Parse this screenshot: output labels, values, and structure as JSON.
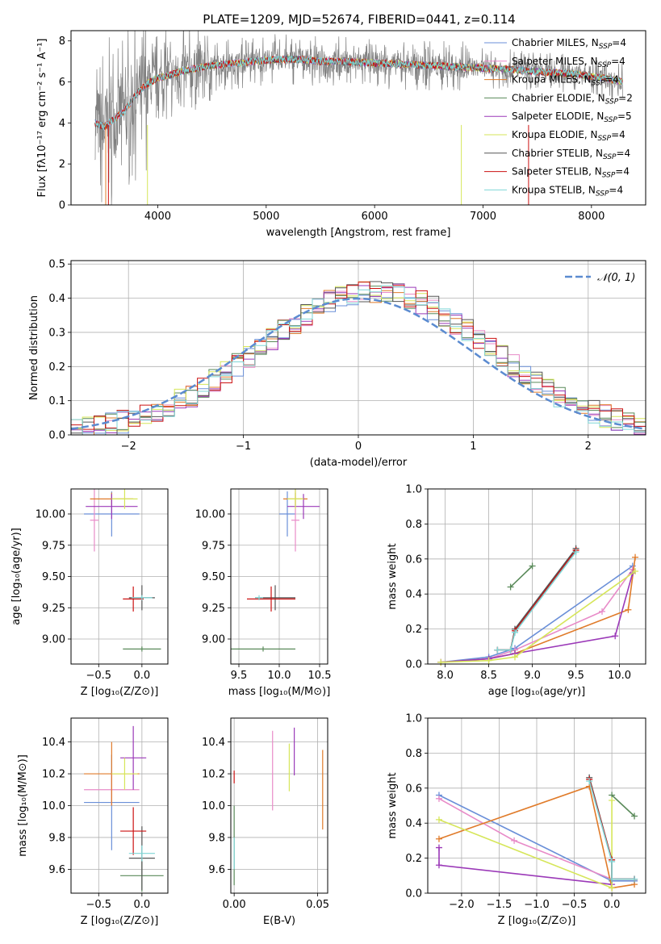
{
  "figure": {
    "title": "PLATE=1209, MJD=52674, FIBERID=0441, z=0.114"
  },
  "colors": {
    "chabrier_miles": "#6a8fd8",
    "salpeter_miles": "#e88bc8",
    "kroupa_miles": "#e07b2a",
    "chabrier_elodie": "#5a8a5a",
    "salpeter_elodie": "#9b39b8",
    "kroupa_elodie": "#d6e65a",
    "chabrier_stelib": "#555555",
    "salpeter_stelib": "#cc1111",
    "kroupa_stelib": "#7fd6d6",
    "gauss": "#5b8bd0"
  },
  "chart_data": [
    {
      "id": "spectrum",
      "type": "line",
      "xlabel": "wavelength [Angstrom, rest frame]",
      "ylabel": "Flux [fλ10⁻¹⁷ erg cm⁻² s⁻¹ A⁻¹]",
      "xlim": [
        3200,
        8500
      ],
      "ylim": [
        0,
        8.5
      ],
      "xticks": [
        "4000",
        "5000",
        "6000",
        "7000",
        "8000"
      ],
      "yticks": [
        "0",
        "2",
        "4",
        "6",
        "8"
      ],
      "legend": [
        "Chabrier MILES, NSSP=4",
        "Salpeter MILES, NSSP=4",
        "Kroupa MILES, NSSP=4",
        "Chabrier ELODIE, NSSP=2",
        "Salpeter ELODIE, NSSP=5",
        "Kroupa ELODIE, NSSP=4",
        "Chabrier STELIB, NSSP=4",
        "Salpeter STELIB, NSSP=4",
        "Kroupa STELIB, NSSP=4"
      ],
      "legend_position": "right",
      "data_points": {
        "x": [
          3420,
          3500,
          3600,
          3700,
          3800,
          3900,
          4000,
          4100,
          4200,
          4300,
          4400,
          4500,
          4700,
          4900,
          5100,
          5300,
          5500,
          5700,
          5900,
          6100,
          6300,
          6500,
          6700,
          6900,
          7100,
          7300,
          7500,
          7700,
          7900,
          8100,
          8290
        ],
        "model": [
          4.0,
          3.8,
          4.2,
          4.6,
          5.4,
          5.9,
          6.2,
          6.3,
          6.5,
          6.6,
          6.7,
          6.8,
          6.9,
          7.0,
          7.1,
          7.1,
          7.0,
          7.0,
          6.95,
          6.9,
          6.85,
          6.8,
          6.75,
          6.7,
          6.65,
          6.6,
          6.5,
          6.45,
          6.35,
          6.2,
          6.0
        ]
      }
    },
    {
      "id": "residuals",
      "type": "line",
      "xlabel": "(data-model)/error",
      "ylabel": "Normed distribution",
      "xlim": [
        -2.5,
        2.5
      ],
      "ylim": [
        0,
        0.51
      ],
      "xticks": [
        "−2",
        "−1",
        "0",
        "1",
        "2"
      ],
      "yticks": [
        "0.0",
        "0.1",
        "0.2",
        "0.3",
        "0.4",
        "0.5"
      ],
      "legend": [
        "𝒩(0, 1)"
      ],
      "legend_position": "top-right"
    },
    {
      "id": "age_vs_z",
      "type": "scatter",
      "xlabel": "Z [log₁₀(Z/Z⊙)]",
      "ylabel": "age  [log₁₀(age/yr)]",
      "xlim": [
        -0.82,
        0.3
      ],
      "ylim": [
        8.8,
        10.2
      ],
      "xticks": [
        "−0.5",
        "0.0"
      ],
      "yticks": [
        "9.00",
        "9.25",
        "9.50",
        "9.75",
        "10.00"
      ],
      "series": [
        {
          "color": "chabrier_miles",
          "x": -0.35,
          "xerr": 0.32,
          "y": 10.0,
          "yerr": 0.18
        },
        {
          "color": "salpeter_miles",
          "x": -0.55,
          "xerr": 0.05,
          "y": 9.95,
          "yerr": 0.25
        },
        {
          "color": "kroupa_miles",
          "x": -0.35,
          "xerr": 0.25,
          "y": 10.12,
          "yerr": 0.05
        },
        {
          "color": "chabrier_elodie",
          "x": 0.0,
          "xerr": 0.22,
          "y": 8.92,
          "yerr": 0.02
        },
        {
          "color": "salpeter_elodie",
          "x": -0.35,
          "xerr": 0.3,
          "y": 10.06,
          "yerr": 0.1
        },
        {
          "color": "kroupa_elodie",
          "x": -0.2,
          "xerr": 0.15,
          "y": 10.12,
          "yerr": 0.08
        },
        {
          "color": "chabrier_stelib",
          "x": 0.0,
          "xerr": 0.15,
          "y": 9.33,
          "yerr": 0.1
        },
        {
          "color": "salpeter_stelib",
          "x": -0.1,
          "xerr": 0.12,
          "y": 9.32,
          "yerr": 0.1
        },
        {
          "color": "kroupa_stelib",
          "x": 0.0,
          "xerr": 0.12,
          "y": 9.33,
          "yerr": 0.02
        }
      ]
    },
    {
      "id": "age_vs_mass",
      "type": "scatter",
      "xlabel": "mass [log₁₀(M/M⊙)]",
      "xlim": [
        9.4,
        10.6
      ],
      "ylim": [
        8.8,
        10.2
      ],
      "xticks": [
        "9.5",
        "10.0",
        "10.5"
      ],
      "yticks": [
        "9.00",
        "9.25",
        "9.50",
        "9.75",
        "10.00"
      ],
      "series": [
        {
          "color": "chabrier_miles",
          "x": 10.1,
          "xerr": 0.1,
          "y": 10.0,
          "yerr": 0.18
        },
        {
          "color": "salpeter_miles",
          "x": 10.2,
          "xerr": 0.05,
          "y": 9.95,
          "yerr": 0.25
        },
        {
          "color": "kroupa_miles",
          "x": 10.2,
          "xerr": 0.15,
          "y": 10.12,
          "yerr": 0.05
        },
        {
          "color": "chabrier_elodie",
          "x": 9.8,
          "xerr": 0.4,
          "y": 8.92,
          "yerr": 0.02
        },
        {
          "color": "salpeter_elodie",
          "x": 10.3,
          "xerr": 0.2,
          "y": 10.06,
          "yerr": 0.1
        },
        {
          "color": "kroupa_elodie",
          "x": 10.2,
          "xerr": 0.1,
          "y": 10.12,
          "yerr": 0.08
        },
        {
          "color": "chabrier_stelib",
          "x": 9.95,
          "xerr": 0.25,
          "y": 9.33,
          "yerr": 0.1
        },
        {
          "color": "salpeter_stelib",
          "x": 9.9,
          "xerr": 0.3,
          "y": 9.32,
          "yerr": 0.1
        },
        {
          "color": "kroupa_stelib",
          "x": 9.75,
          "xerr": 0.05,
          "y": 9.33,
          "yerr": 0.02
        }
      ]
    },
    {
      "id": "weight_vs_age",
      "type": "line",
      "xlabel": "age  [log₁₀(age/yr)]",
      "ylabel": "mass weight",
      "xlim": [
        7.8,
        10.3
      ],
      "ylim": [
        0,
        1.0
      ],
      "xticks": [
        "8.0",
        "8.5",
        "9.0",
        "9.5",
        "10.0"
      ],
      "yticks": [
        "0.0",
        "0.2",
        "0.4",
        "0.6",
        "0.8",
        "1.0"
      ],
      "series": [
        {
          "color": "chabrier_miles",
          "x": [
            7.95,
            8.5,
            8.8,
            10.15
          ],
          "y": [
            0.01,
            0.04,
            0.09,
            0.56
          ]
        },
        {
          "color": "salpeter_miles",
          "x": [
            7.95,
            8.5,
            8.8,
            9.8,
            10.15
          ],
          "y": [
            0.01,
            0.03,
            0.08,
            0.3,
            0.54
          ]
        },
        {
          "color": "kroupa_miles",
          "x": [
            7.95,
            8.5,
            8.8,
            10.1,
            10.18
          ],
          "y": [
            0.01,
            0.03,
            0.06,
            0.31,
            0.61
          ]
        },
        {
          "color": "chabrier_elodie",
          "x": [
            8.75,
            9.0
          ],
          "y": [
            0.44,
            0.56
          ]
        },
        {
          "color": "salpeter_elodie",
          "x": [
            7.95,
            8.5,
            8.8,
            9.95,
            10.15
          ],
          "y": [
            0.01,
            0.03,
            0.06,
            0.16,
            0.52
          ]
        },
        {
          "color": "kroupa_elodie",
          "x": [
            7.95,
            8.5,
            8.8,
            10.18
          ],
          "y": [
            0.01,
            0.02,
            0.04,
            0.53
          ]
        },
        {
          "color": "chabrier_stelib",
          "x": [
            8.6,
            8.75,
            8.8,
            9.5
          ],
          "y": [
            0.08,
            0.08,
            0.2,
            0.66
          ]
        },
        {
          "color": "salpeter_stelib",
          "x": [
            8.6,
            8.75,
            8.8,
            9.5
          ],
          "y": [
            0.08,
            0.08,
            0.19,
            0.65
          ]
        },
        {
          "color": "kroupa_stelib",
          "x": [
            8.6,
            8.75,
            8.8,
            9.5
          ],
          "y": [
            0.08,
            0.08,
            0.18,
            0.64
          ]
        }
      ]
    },
    {
      "id": "mass_vs_z",
      "type": "scatter",
      "xlabel": "Z [log₁₀(Z/Z⊙)]",
      "ylabel": "mass [log₁₀(M/M⊙)]",
      "xlim": [
        -0.82,
        0.3
      ],
      "ylim": [
        9.45,
        10.55
      ],
      "xticks": [
        "−0.5",
        "0.0"
      ],
      "yticks": [
        "9.6",
        "9.8",
        "10.0",
        "10.2",
        "10.4"
      ],
      "series": [
        {
          "color": "chabrier_miles",
          "x": -0.35,
          "xerr": 0.32,
          "y": 10.02,
          "yerr": 0.3
        },
        {
          "color": "salpeter_miles",
          "x": -0.35,
          "xerr": 0.32,
          "y": 10.1,
          "yerr": 0.1
        },
        {
          "color": "kroupa_miles",
          "x": -0.35,
          "xerr": 0.32,
          "y": 10.2,
          "yerr": 0.2
        },
        {
          "color": "chabrier_elodie",
          "x": 0.0,
          "xerr": 0.25,
          "y": 9.56,
          "yerr": 0.1
        },
        {
          "color": "salpeter_elodie",
          "x": -0.1,
          "xerr": 0.15,
          "y": 10.3,
          "yerr": 0.2
        },
        {
          "color": "kroupa_elodie",
          "x": -0.2,
          "xerr": 0.15,
          "y": 10.2,
          "yerr": 0.1
        },
        {
          "color": "chabrier_stelib",
          "x": 0.0,
          "xerr": 0.15,
          "y": 9.67,
          "yerr": 0.2
        },
        {
          "color": "salpeter_stelib",
          "x": -0.1,
          "xerr": 0.15,
          "y": 9.84,
          "yerr": 0.15
        },
        {
          "color": "kroupa_stelib",
          "x": 0.0,
          "xerr": 0.15,
          "y": 9.7,
          "yerr": 0.05
        }
      ]
    },
    {
      "id": "mass_vs_ebv",
      "type": "scatter",
      "xlabel": "E(B-V)",
      "xlim": [
        -0.002,
        0.056
      ],
      "ylim": [
        9.45,
        10.55
      ],
      "xticks": [
        "0.00",
        "0.05"
      ],
      "yticks": [
        "9.6",
        "9.8",
        "10.0",
        "10.2",
        "10.4"
      ],
      "series": [
        {
          "color": "salpeter_miles",
          "x": 0.023,
          "y": 10.22,
          "yerr": 0.25
        },
        {
          "color": "salpeter_elodie",
          "x": 0.036,
          "y": 10.34,
          "yerr": 0.15
        },
        {
          "color": "kroupa_elodie",
          "x": 0.033,
          "y": 10.24,
          "yerr": 0.15
        },
        {
          "color": "kroupa_miles",
          "x": 0.053,
          "y": 10.1,
          "yerr": 0.25
        },
        {
          "color": "salpeter_stelib",
          "x": 0.0,
          "y": 10.18,
          "yerr": 0.04
        },
        {
          "color": "chabrier_elodie",
          "x": 0.0,
          "y": 9.75,
          "yerr": 0.25
        },
        {
          "color": "kroupa_stelib",
          "x": 0.0,
          "y": 9.7,
          "yerr": 0.1
        }
      ]
    },
    {
      "id": "weight_vs_z",
      "type": "line",
      "xlabel": "Z [log₁₀(Z/Z⊙)]",
      "ylabel": "mass weight",
      "xlim": [
        -2.45,
        0.45
      ],
      "ylim": [
        0,
        1.0
      ],
      "xticks": [
        "−2.0",
        "−1.5",
        "−1.0",
        "−0.5",
        "0.0"
      ],
      "yticks": [
        "0.0",
        "0.2",
        "0.4",
        "0.6",
        "0.8",
        "1.0"
      ],
      "series": [
        {
          "color": "chabrier_miles",
          "x": [
            -2.3,
            0.0,
            0.3
          ],
          "y": [
            0.56,
            0.07,
            0.07
          ]
        },
        {
          "color": "salpeter_miles",
          "x": [
            -2.3,
            -1.3,
            0.0,
            0.3
          ],
          "y": [
            0.54,
            0.3,
            0.08,
            0.08
          ]
        },
        {
          "color": "kroupa_miles",
          "x": [
            -2.3,
            -0.3,
            0.0,
            0.3
          ],
          "y": [
            0.31,
            0.61,
            0.03,
            0.05
          ]
        },
        {
          "color": "chabrier_elodie",
          "x": [
            0.0,
            0.3
          ],
          "y": [
            0.56,
            0.44
          ]
        },
        {
          "color": "salpeter_elodie",
          "x": [
            -2.3,
            -2.3,
            0.0
          ],
          "y": [
            0.26,
            0.16,
            0.05
          ]
        },
        {
          "color": "kroupa_elodie",
          "x": [
            -2.3,
            0.0,
            0.0
          ],
          "y": [
            0.42,
            0.03,
            0.53
          ]
        },
        {
          "color": "chabrier_stelib",
          "x": [
            -0.3,
            0.0,
            0.0,
            0.3
          ],
          "y": [
            0.66,
            0.19,
            0.08,
            0.08
          ]
        },
        {
          "color": "salpeter_stelib",
          "x": [
            -0.3,
            0.0,
            0.0,
            0.3
          ],
          "y": [
            0.65,
            0.19,
            0.08,
            0.08
          ]
        },
        {
          "color": "kroupa_stelib",
          "x": [
            -0.3,
            0.0,
            0.0,
            0.3
          ],
          "y": [
            0.64,
            0.18,
            0.08,
            0.08
          ]
        }
      ]
    }
  ]
}
